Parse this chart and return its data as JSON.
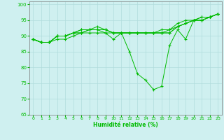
{
  "xlabel": "Humidité relative (%)",
  "xlim": [
    -0.5,
    23.5
  ],
  "ylim": [
    65,
    101
  ],
  "yticks": [
    65,
    70,
    75,
    80,
    85,
    90,
    95,
    100
  ],
  "xticks": [
    0,
    1,
    2,
    3,
    4,
    5,
    6,
    7,
    8,
    9,
    10,
    11,
    12,
    13,
    14,
    15,
    16,
    17,
    18,
    19,
    20,
    21,
    22,
    23
  ],
  "background_color": "#cff0f0",
  "grid_color": "#b0dcdc",
  "line_color": "#00bb00",
  "marker": "+",
  "curves": [
    [
      89,
      88,
      88,
      89,
      89,
      90,
      91,
      91,
      91,
      91,
      89,
      91,
      85,
      78,
      76,
      73,
      74,
      87,
      92,
      89,
      95,
      96,
      96,
      97
    ],
    [
      89,
      88,
      88,
      90,
      90,
      91,
      91,
      92,
      92,
      92,
      91,
      91,
      91,
      91,
      91,
      91,
      91,
      91,
      93,
      94,
      95,
      95,
      96,
      97
    ],
    [
      89,
      88,
      88,
      90,
      90,
      91,
      92,
      92,
      92,
      92,
      91,
      91,
      91,
      91,
      91,
      91,
      91,
      92,
      93,
      94,
      95,
      95,
      96,
      97
    ],
    [
      89,
      88,
      88,
      90,
      90,
      91,
      92,
      92,
      93,
      92,
      91,
      91,
      91,
      91,
      91,
      91,
      92,
      92,
      94,
      95,
      95,
      96,
      96,
      97
    ],
    [
      89,
      88,
      88,
      90,
      90,
      91,
      91,
      92,
      92,
      91,
      91,
      91,
      91,
      91,
      91,
      91,
      91,
      91,
      93,
      94,
      95,
      95,
      96,
      97
    ]
  ]
}
